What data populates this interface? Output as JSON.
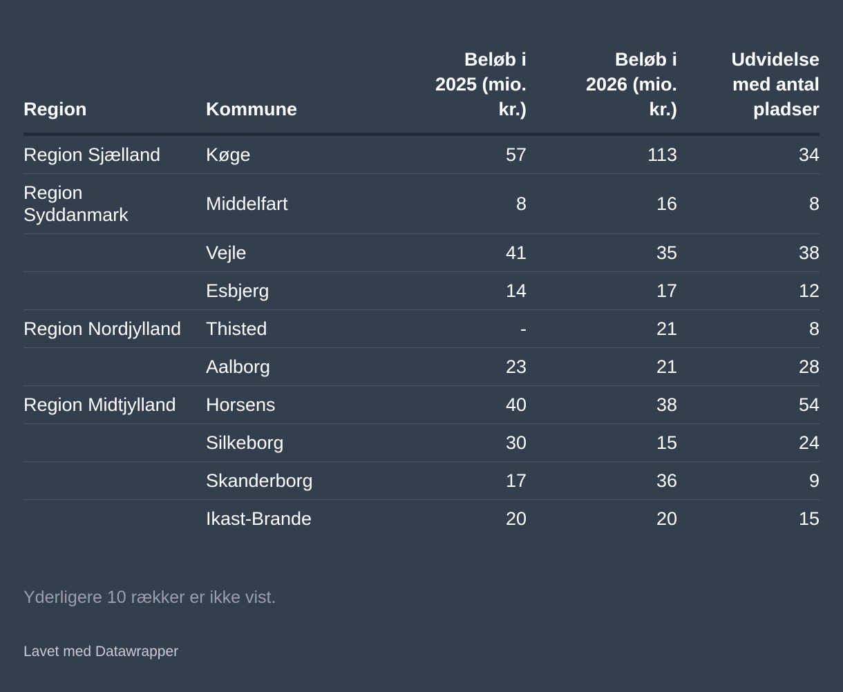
{
  "chart_data": {
    "type": "table",
    "columns": [
      {
        "key": "region",
        "label_lines": [
          "Region"
        ],
        "align": "left"
      },
      {
        "key": "kommune",
        "label_lines": [
          "Kommune"
        ],
        "align": "left"
      },
      {
        "key": "v2025",
        "label_lines": [
          "Beløb i",
          "2025 (mio.",
          "kr.)"
        ],
        "align": "right"
      },
      {
        "key": "v2026",
        "label_lines": [
          "Beløb i",
          "2026 (mio.",
          "kr.)"
        ],
        "align": "right"
      },
      {
        "key": "udvidelse",
        "label_lines": [
          "Udvidelse",
          "med antal",
          "pladser"
        ],
        "align": "right"
      }
    ],
    "rows": [
      {
        "region": "Region Sjælland",
        "kommune": "Køge",
        "v2025": "57",
        "v2026": "113",
        "udvidelse": "34"
      },
      {
        "region": "Region Syddanmark",
        "kommune": "Middelfart",
        "v2025": "8",
        "v2026": "16",
        "udvidelse": "8"
      },
      {
        "region": "",
        "kommune": "Vejle",
        "v2025": "41",
        "v2026": "35",
        "udvidelse": "38"
      },
      {
        "region": "",
        "kommune": "Esbjerg",
        "v2025": "14",
        "v2026": "17",
        "udvidelse": "12"
      },
      {
        "region": "Region Nordjylland",
        "kommune": "Thisted",
        "v2025": "-",
        "v2026": "21",
        "udvidelse": "8"
      },
      {
        "region": "",
        "kommune": "Aalborg",
        "v2025": "23",
        "v2026": "21",
        "udvidelse": "28"
      },
      {
        "region": "Region Midtjylland",
        "kommune": "Horsens",
        "v2025": "40",
        "v2026": "38",
        "udvidelse": "54"
      },
      {
        "region": "",
        "kommune": "Silkeborg",
        "v2025": "30",
        "v2026": "15",
        "udvidelse": "24"
      },
      {
        "region": "",
        "kommune": "Skanderborg",
        "v2025": "17",
        "v2026": "36",
        "udvidelse": "9"
      },
      {
        "region": "",
        "kommune": "Ikast-Brande",
        "v2025": "20",
        "v2026": "20",
        "udvidelse": "15"
      }
    ]
  },
  "note": "Yderligere 10 rækker er ikke vist.",
  "credit": "Lavet med Datawrapper",
  "colors": {
    "background": "#333e4e",
    "text": "#ffffff",
    "muted_text": "#9aa0a8",
    "header_rule": "#222a35",
    "row_rule": "#4c5767"
  }
}
